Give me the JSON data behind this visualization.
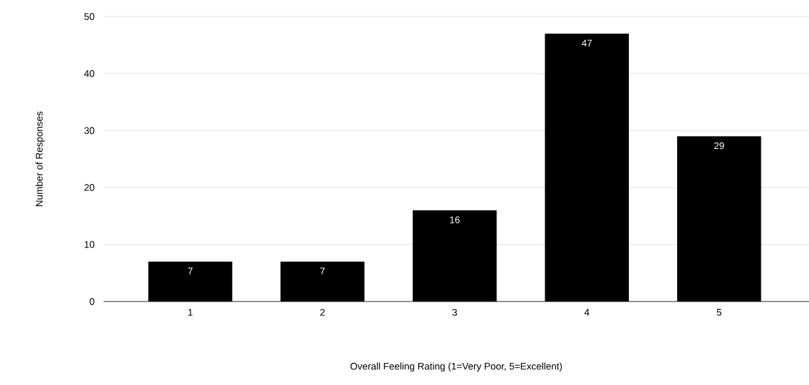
{
  "chart_data": {
    "type": "bar",
    "xlabel": "Overall Feeling Rating (1=Very Poor, 5=Excellent)",
    "ylabel": "Number of Responses",
    "categories": [
      "1",
      "2",
      "3",
      "4",
      "5"
    ],
    "values": [
      7,
      7,
      16,
      47,
      29
    ],
    "color": "#000000",
    "ylim": [
      0,
      50
    ],
    "yticks": [
      0,
      10,
      20,
      30,
      40,
      50
    ],
    "grid": "y",
    "data_labels": true
  }
}
